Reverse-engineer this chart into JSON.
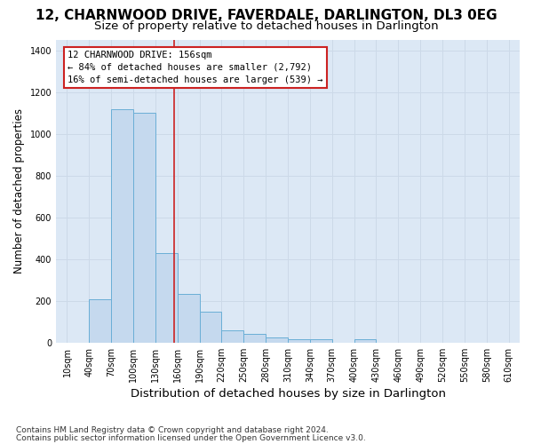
{
  "title": "12, CHARNWOOD DRIVE, FAVERDALE, DARLINGTON, DL3 0EG",
  "subtitle": "Size of property relative to detached houses in Darlington",
  "xlabel": "Distribution of detached houses by size in Darlington",
  "ylabel": "Number of detached properties",
  "footnote1": "Contains HM Land Registry data © Crown copyright and database right 2024.",
  "footnote2": "Contains public sector information licensed under the Open Government Licence v3.0.",
  "bar_labels": [
    "10sqm",
    "40sqm",
    "70sqm",
    "100sqm",
    "130sqm",
    "160sqm",
    "190sqm",
    "220sqm",
    "250sqm",
    "280sqm",
    "310sqm",
    "340sqm",
    "370sqm",
    "400sqm",
    "430sqm",
    "460sqm",
    "490sqm",
    "520sqm",
    "550sqm",
    "580sqm",
    "610sqm"
  ],
  "bin_edges": [
    10,
    40,
    70,
    100,
    130,
    160,
    190,
    220,
    250,
    280,
    310,
    340,
    370,
    400,
    430,
    460,
    490,
    520,
    550,
    580,
    610
  ],
  "heights": [
    0,
    207,
    1120,
    1100,
    430,
    235,
    148,
    58,
    40,
    25,
    15,
    15,
    0,
    15,
    0,
    0,
    0,
    0,
    0,
    0
  ],
  "bar_fill_color": "#c5d9ee",
  "bar_edge_color": "#6aaed6",
  "ylim_max": 1450,
  "yticks": [
    0,
    200,
    400,
    600,
    800,
    1000,
    1200,
    1400
  ],
  "property_sqm": 156,
  "annotation_line1": "12 CHARNWOOD DRIVE: 156sqm",
  "annotation_line2": "← 84% of detached houses are smaller (2,792)",
  "annotation_line3": "16% of semi-detached houses are larger (539) →",
  "red_color": "#cc2222",
  "grid_color": "#ccd9e8",
  "bg_color": "#dce8f5",
  "title_fontsize": 11,
  "subtitle_fontsize": 9.5,
  "footnote_fontsize": 6.5,
  "ylabel_fontsize": 8.5,
  "xlabel_fontsize": 9.5,
  "tick_fontsize": 7,
  "ann_fontsize": 7.5
}
